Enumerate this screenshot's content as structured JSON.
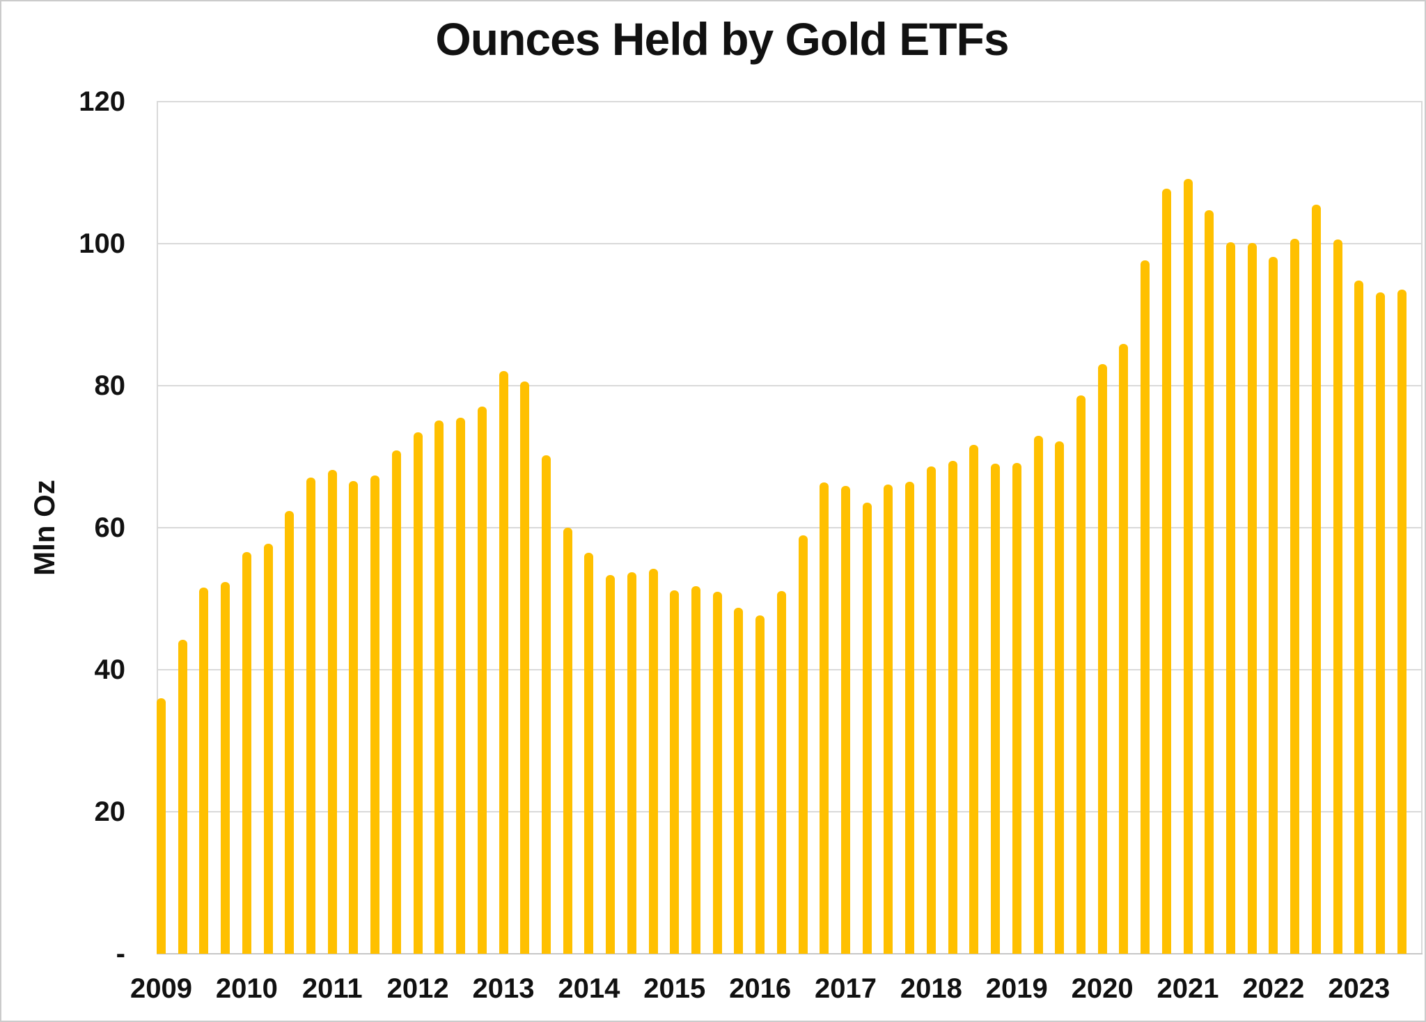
{
  "title": "Ounces Held by Gold ETFs",
  "y_axis": {
    "label": "Mln Oz",
    "ticks": [
      {
        "label": "120",
        "value": 120
      },
      {
        "label": "100",
        "value": 100
      },
      {
        "label": "80",
        "value": 80
      },
      {
        "label": "60",
        "value": 60
      },
      {
        "label": "40",
        "value": 40
      },
      {
        "label": "20",
        "value": 20
      },
      {
        "label": "-",
        "value": 0
      }
    ]
  },
  "chart_data": {
    "type": "bar",
    "title": "Ounces Held by Gold ETFs",
    "xlabel": "",
    "ylabel": "Mln Oz",
    "ylim": [
      0,
      120
    ],
    "grid": true,
    "gridline_interval": 20,
    "bar_color": "#FFC000",
    "categories": [
      "2009 Q1",
      "2009 Q2",
      "2009 Q3",
      "2009 Q4",
      "2010 Q1",
      "2010 Q2",
      "2010 Q3",
      "2010 Q4",
      "2011 Q1",
      "2011 Q2",
      "2011 Q3",
      "2011 Q4",
      "2012 Q1",
      "2012 Q2",
      "2012 Q3",
      "2012 Q4",
      "2013 Q1",
      "2013 Q2",
      "2013 Q3",
      "2013 Q4",
      "2014 Q1",
      "2014 Q2",
      "2014 Q3",
      "2014 Q4",
      "2015 Q1",
      "2015 Q2",
      "2015 Q3",
      "2015 Q4",
      "2016 Q1",
      "2016 Q2",
      "2016 Q3",
      "2016 Q4",
      "2017 Q1",
      "2017 Q2",
      "2017 Q3",
      "2017 Q4",
      "2018 Q1",
      "2018 Q2",
      "2018 Q3",
      "2018 Q4",
      "2019 Q1",
      "2019 Q2",
      "2019 Q3",
      "2019 Q4",
      "2020 Q1",
      "2020 Q2",
      "2020 Q3",
      "2020 Q4",
      "2021 Q1",
      "2021 Q2",
      "2021 Q3",
      "2021 Q4",
      "2022 Q1",
      "2022 Q2",
      "2022 Q3",
      "2022 Q4",
      "2023 Q1",
      "2023 Q2",
      "2023 Q3"
    ],
    "values": [
      36.0,
      44.2,
      51.6,
      52.4,
      56.6,
      57.7,
      62.4,
      67.1,
      68.1,
      66.6,
      67.4,
      70.9,
      73.4,
      75.1,
      75.5,
      77.1,
      82.1,
      80.6,
      70.2,
      60.0,
      56.5,
      53.3,
      53.7,
      54.2,
      51.2,
      51.8,
      51.0,
      48.7,
      47.6,
      51.1,
      58.9,
      66.4,
      65.9,
      63.5,
      66.1,
      66.5,
      68.6,
      69.4,
      71.7,
      69.0,
      69.1,
      72.9,
      72.2,
      78.6,
      83.0,
      85.9,
      97.6,
      107.7,
      109.1,
      104.7,
      100.2,
      100.1,
      98.1,
      100.7,
      105.5,
      100.6,
      94.8,
      93.1,
      93.5
    ],
    "year_labels": [
      "2009",
      "2010",
      "2011",
      "2012",
      "2013",
      "2014",
      "2015",
      "2016",
      "2017",
      "2018",
      "2019",
      "2020",
      "2021",
      "2022",
      "2023"
    ],
    "legend": "none"
  }
}
